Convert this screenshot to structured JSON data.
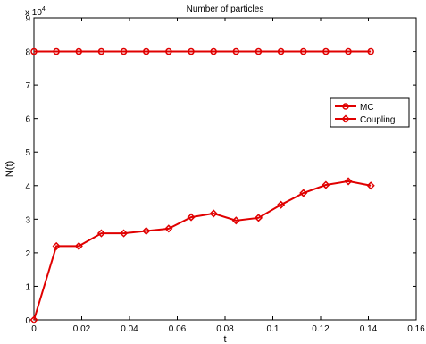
{
  "chart_data": {
    "type": "line",
    "title": "Number of particles",
    "xlabel": "t",
    "ylabel": "N(t)",
    "y_multiplier_label": "x 10",
    "y_multiplier_exponent": "4",
    "xlim": [
      0,
      0.16
    ],
    "ylim": [
      0,
      9
    ],
    "x_ticks": [
      0,
      0.02,
      0.04,
      0.06,
      0.08,
      0.1,
      0.12,
      0.14,
      0.16
    ],
    "x_tick_labels": [
      "0",
      "0.02",
      "0.04",
      "0.06",
      "0.08",
      "0.1",
      "0.12",
      "0.14",
      "0.16"
    ],
    "y_ticks": [
      0,
      1,
      2,
      3,
      4,
      5,
      6,
      7,
      8,
      9
    ],
    "y_tick_labels": [
      "0",
      "1",
      "2",
      "3",
      "4",
      "5",
      "6",
      "7",
      "8",
      "9"
    ],
    "grid": false,
    "legend_position": "right-middle",
    "color": "#e00000",
    "series": [
      {
        "name": "MC",
        "marker": "circle",
        "x": [
          0,
          0.0094,
          0.0188,
          0.0282,
          0.0376,
          0.047,
          0.0564,
          0.0658,
          0.0752,
          0.0846,
          0.094,
          0.1034,
          0.1128,
          0.1222,
          0.1316,
          0.141
        ],
        "y": [
          8,
          8,
          8,
          8,
          8,
          8,
          8,
          8,
          8,
          8,
          8,
          8,
          8,
          8,
          8,
          8
        ]
      },
      {
        "name": "Coupling",
        "marker": "diamond",
        "x": [
          0,
          0.0094,
          0.0188,
          0.0282,
          0.0376,
          0.047,
          0.0564,
          0.0658,
          0.0752,
          0.0846,
          0.094,
          0.1034,
          0.1128,
          0.1222,
          0.1316,
          0.141
        ],
        "y": [
          0,
          2.2,
          2.2,
          2.58,
          2.58,
          2.65,
          2.72,
          3.06,
          3.17,
          2.96,
          3.04,
          3.43,
          3.78,
          4.02,
          4.13,
          4.0
        ]
      }
    ]
  }
}
